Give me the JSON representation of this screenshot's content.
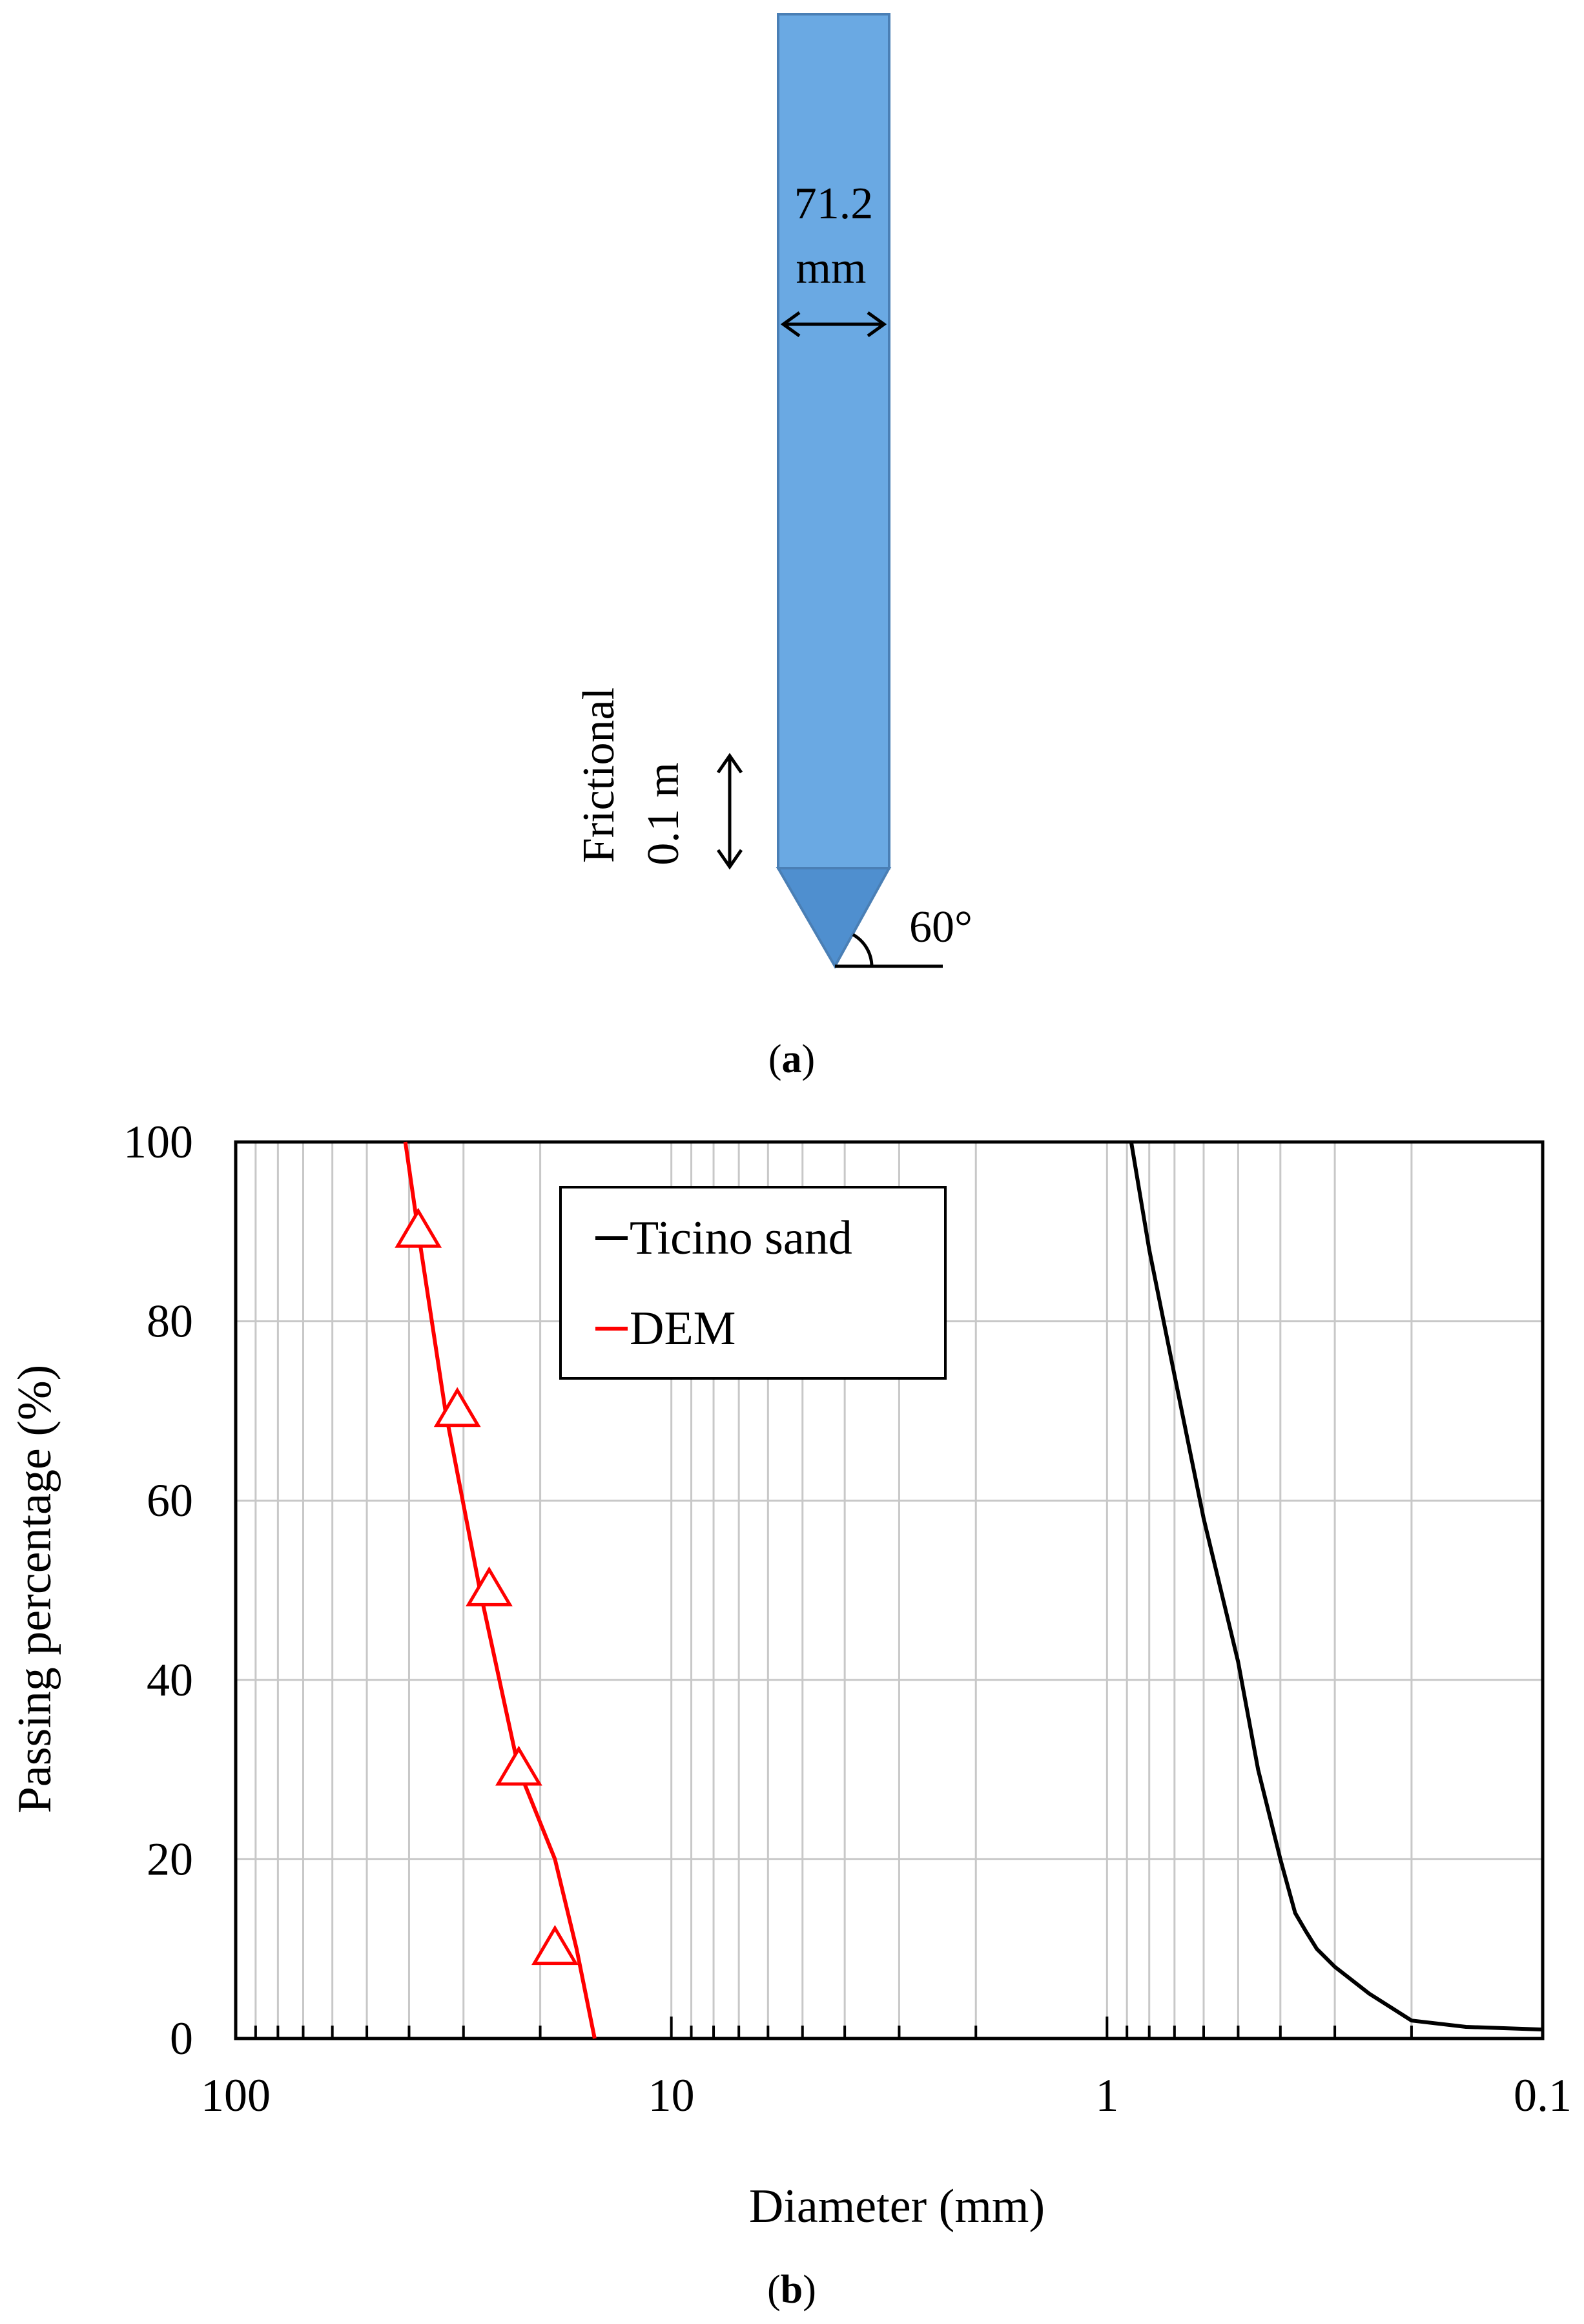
{
  "colors": {
    "shaft": "#6aa9e3",
    "shaft_stroke": "#4a7fb5",
    "tip": "#4f8fcf",
    "grid": "#c8c8c8",
    "axis": "#000000"
  },
  "panel_a": {
    "diameter_value": "71.2",
    "diameter_unit": "mm",
    "friction_label": "Frictional",
    "friction_length": "0.1 m",
    "angle_label": "60°",
    "caption_open": "(",
    "caption_letter": "a",
    "caption_close": ")"
  },
  "panel_b": {
    "caption_open": "(",
    "caption_letter": "b",
    "caption_close": ")"
  },
  "chart_data": {
    "type": "line",
    "xlabel": "Diameter (mm)",
    "ylabel": "Passing percentage (%)",
    "x_scale": "log",
    "x_reversed": true,
    "xlim": [
      100,
      0.1
    ],
    "ylim": [
      0,
      100
    ],
    "x_ticks": [
      "100",
      "10",
      "1",
      "0.1"
    ],
    "y_ticks": [
      "0",
      "20",
      "40",
      "60",
      "80",
      "100"
    ],
    "grid": true,
    "legend_position": "top-left",
    "series": [
      {
        "name": "Ticino sand",
        "color": "#000000",
        "marker": "none",
        "x": [
          0.88,
          0.8,
          0.7,
          0.6,
          0.5,
          0.45,
          0.4,
          0.37,
          0.35,
          0.33,
          0.3,
          0.25,
          0.2,
          0.15,
          0.1
        ],
        "y": [
          100,
          88,
          74,
          58,
          42,
          30,
          20,
          14,
          12,
          10,
          8,
          5,
          2,
          1.3,
          1
        ]
      },
      {
        "name": "DEM",
        "color": "#ff0000",
        "marker": "triangle",
        "x": [
          40.8,
          38.1,
          33.0,
          27.5,
          22.4,
          18.5,
          16.5,
          15.0
        ],
        "y": [
          100,
          90,
          70,
          50,
          30,
          20,
          10,
          0
        ],
        "marker_x": [
          38.1,
          31.0,
          26.2,
          22.4,
          18.5
        ],
        "marker_y": [
          90,
          70,
          50,
          30,
          10
        ]
      }
    ]
  }
}
